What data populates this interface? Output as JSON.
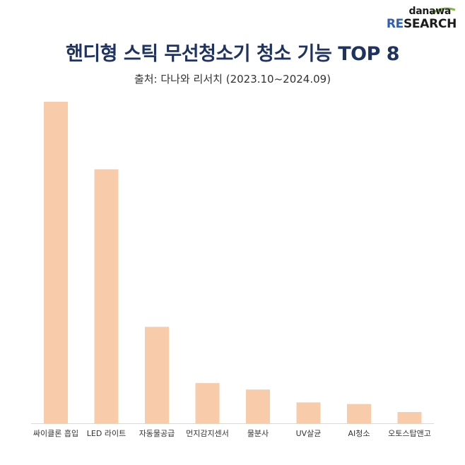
{
  "logo": {
    "top": "danawa",
    "re": "RE",
    "rest": "SEARCH"
  },
  "title": "핸디형 스틱 무선청소기 청소 기능 TOP 8",
  "subtitle": "출처: 다나와 리서치 (2023.10~2024.09)",
  "colors": {
    "bar": "#f8cbaa",
    "title": "#1f3360",
    "axis": "#d9d9d9"
  },
  "chart_data": {
    "type": "bar",
    "title": "핸디형 스틱 무선청소기 청소 기능 TOP 8",
    "subtitle": "출처: 다나와 리서치 (2023.10~2024.09)",
    "categories": [
      "싸이클론 흡입",
      "LED 라이트",
      "자동물공급",
      "먼지감지센서",
      "물분사",
      "UV살균",
      "AI청소",
      "오토스탑앤고"
    ],
    "values": [
      100,
      79,
      30,
      12.5,
      10.5,
      6.5,
      6,
      3.5
    ],
    "xlabel": "",
    "ylabel": "",
    "ylim": [
      0,
      100
    ],
    "grid": false,
    "legend": "none"
  }
}
